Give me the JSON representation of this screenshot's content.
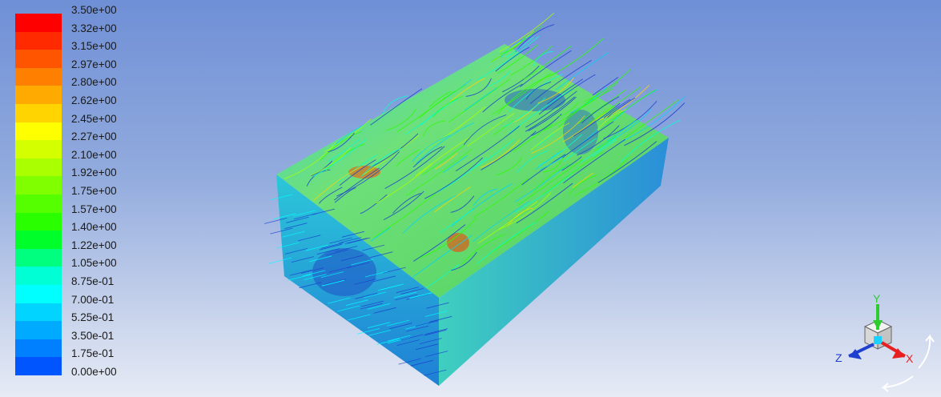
{
  "legend": {
    "labels": [
      "3.50e+00",
      "3.32e+00",
      "3.15e+00",
      "2.97e+00",
      "2.80e+00",
      "2.62e+00",
      "2.45e+00",
      "2.27e+00",
      "2.10e+00",
      "1.92e+00",
      "1.75e+00",
      "1.57e+00",
      "1.40e+00",
      "1.22e+00",
      "1.05e+00",
      "8.75e-01",
      "7.00e-01",
      "5.25e-01",
      "3.50e-01",
      "1.75e-01",
      "0.00e+00"
    ],
    "colors": [
      "#ff0000",
      "#ff2a00",
      "#ff5500",
      "#ff7f00",
      "#ffaa00",
      "#ffd400",
      "#ffff00",
      "#d4ff00",
      "#aaff00",
      "#7fff00",
      "#55ff00",
      "#2aff00",
      "#00ff2a",
      "#00ff7f",
      "#00ffd4",
      "#00ffff",
      "#00d4ff",
      "#00aaff",
      "#007fff",
      "#0055ff",
      "#0000ff"
    ]
  },
  "triad": {
    "axis_y": "Y",
    "axis_z": "Z",
    "axis_x": "X",
    "colors": {
      "y": "#2ecc2e",
      "z": "#1f3fcf",
      "x": "#e62020"
    }
  }
}
